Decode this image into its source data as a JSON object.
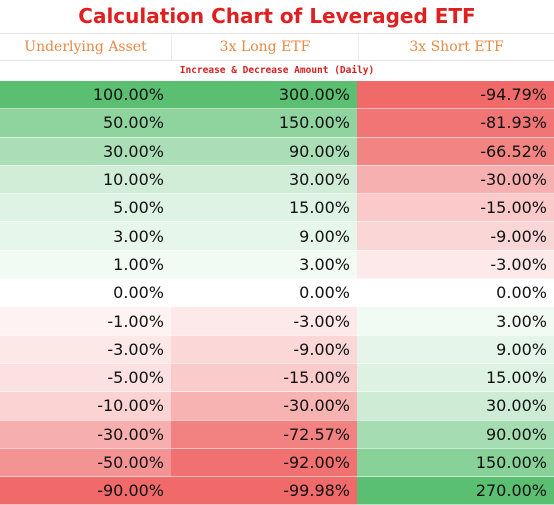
{
  "title": "Calculation Chart of Leveraged ETF",
  "subtitle": "Increase & Decrease Amount (Daily)",
  "chart_data": {
    "type": "table",
    "title": "Calculation Chart of Leveraged ETF",
    "subtitle": "Increase & Decrease Amount (Daily)",
    "columns": [
      "Underlying Asset",
      "3x Long ETF",
      "3x Short ETF"
    ],
    "rows": [
      [
        "100.00%",
        "300.00%",
        "-94.79%"
      ],
      [
        "50.00%",
        "150.00%",
        "-81.93%"
      ],
      [
        "30.00%",
        "90.00%",
        "-66.52%"
      ],
      [
        "10.00%",
        "30.00%",
        "-30.00%"
      ],
      [
        "5.00%",
        "15.00%",
        "-15.00%"
      ],
      [
        "3.00%",
        "9.00%",
        "-9.00%"
      ],
      [
        "1.00%",
        "3.00%",
        "-3.00%"
      ],
      [
        "0.00%",
        "0.00%",
        "0.00%"
      ],
      [
        "-1.00%",
        "-3.00%",
        "3.00%"
      ],
      [
        "-3.00%",
        "-9.00%",
        "9.00%"
      ],
      [
        "-5.00%",
        "-15.00%",
        "15.00%"
      ],
      [
        "-10.00%",
        "-30.00%",
        "30.00%"
      ],
      [
        "-30.00%",
        "-72.57%",
        "90.00%"
      ],
      [
        "-50.00%",
        "-92.00%",
        "150.00%"
      ],
      [
        "-90.00%",
        "-99.98%",
        "270.00%"
      ]
    ],
    "colors": {
      "positive": "#5bbf72",
      "negative": "#f06a6a",
      "title": "#e02020",
      "header": "#e48a45"
    }
  }
}
